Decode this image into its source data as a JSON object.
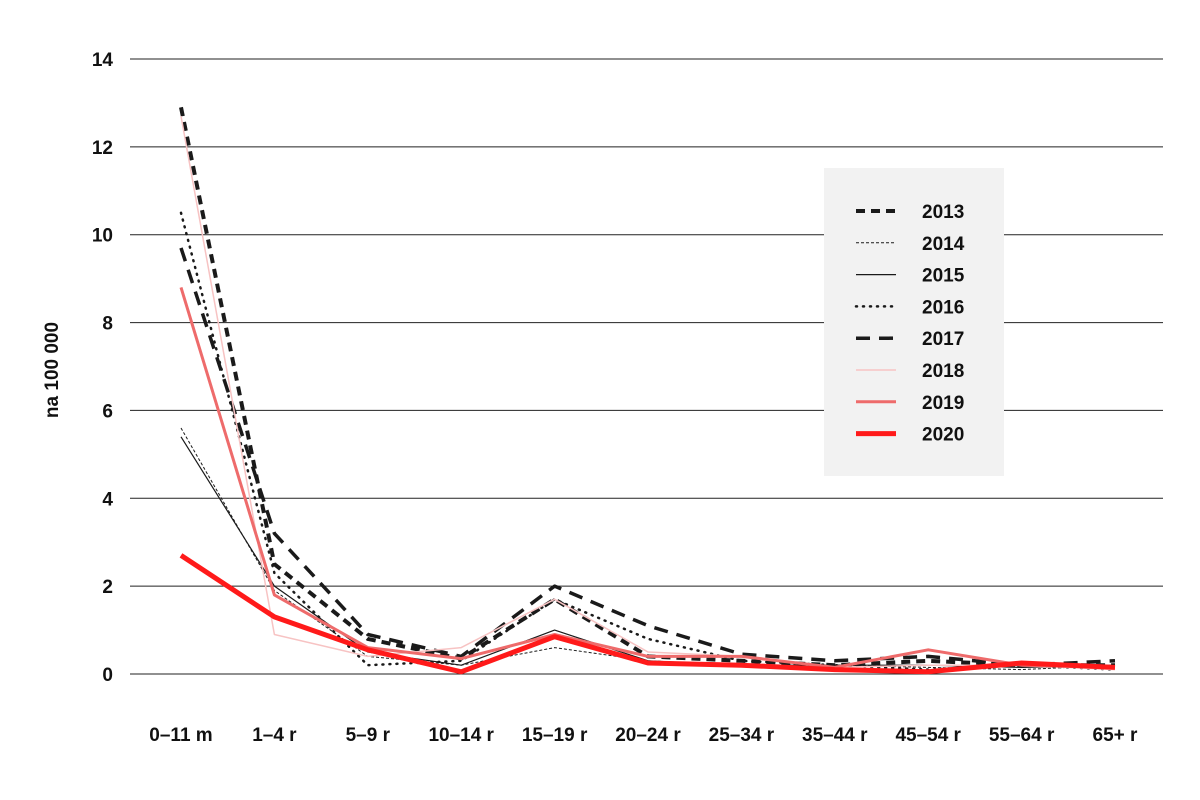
{
  "chart_data": {
    "type": "line",
    "ylabel": "na 100 000",
    "xlabel": "",
    "categories": [
      "0–11 m",
      "1–4 r",
      "5–9 r",
      "10–14 r",
      "15–19 r",
      "20–24 r",
      "25–34 r",
      "35–44 r",
      "45–54 r",
      "55–64 r",
      "65+ r"
    ],
    "yticks": [
      "0",
      "2",
      "4",
      "6",
      "8",
      "10",
      "12",
      "14"
    ],
    "ylim": [
      0,
      14
    ],
    "grid": true,
    "legend_position": "top-right",
    "series": [
      {
        "name": "2013",
        "color": "#1a1a1a",
        "style": "dash-heavy",
        "values": [
          12.9,
          2.5,
          0.8,
          0.35,
          1.7,
          0.4,
          0.3,
          0.2,
          0.3,
          0.2,
          0.2
        ]
      },
      {
        "name": "2014",
        "color": "#1a1a1a",
        "style": "thin-dotted",
        "values": [
          5.6,
          1.9,
          0.4,
          0.2,
          0.6,
          0.3,
          0.2,
          0.2,
          0.15,
          0.1,
          0.2
        ]
      },
      {
        "name": "2015",
        "color": "#1a1a1a",
        "style": "solid-thin",
        "values": [
          5.4,
          2.0,
          0.5,
          0.2,
          1.0,
          0.3,
          0.2,
          0.2,
          0.2,
          0.15,
          0.2
        ]
      },
      {
        "name": "2016",
        "color": "#1a1a1a",
        "style": "dotted",
        "values": [
          10.5,
          2.3,
          0.2,
          0.3,
          1.7,
          0.8,
          0.3,
          0.2,
          0.1,
          0.2,
          0.1
        ]
      },
      {
        "name": "2017",
        "color": "#1a1a1a",
        "style": "dash-long",
        "values": [
          9.7,
          3.2,
          0.9,
          0.4,
          2.0,
          1.1,
          0.45,
          0.3,
          0.4,
          0.2,
          0.3
        ]
      },
      {
        "name": "2018",
        "color": "#f7c3c3",
        "style": "solid",
        "values": [
          12.7,
          0.9,
          0.4,
          0.6,
          1.7,
          0.5,
          0.4,
          0.15,
          0.2,
          0.2,
          0.1
        ]
      },
      {
        "name": "2019",
        "color": "#ee6b6b",
        "style": "solid-medium",
        "values": [
          8.8,
          1.8,
          0.6,
          0.35,
          0.9,
          0.4,
          0.4,
          0.15,
          0.55,
          0.2,
          0.15
        ]
      },
      {
        "name": "2020",
        "color": "#ff1a1a",
        "style": "solid-thick",
        "values": [
          2.7,
          1.3,
          0.55,
          0.05,
          0.85,
          0.25,
          0.2,
          0.1,
          0.05,
          0.25,
          0.15
        ]
      }
    ]
  }
}
